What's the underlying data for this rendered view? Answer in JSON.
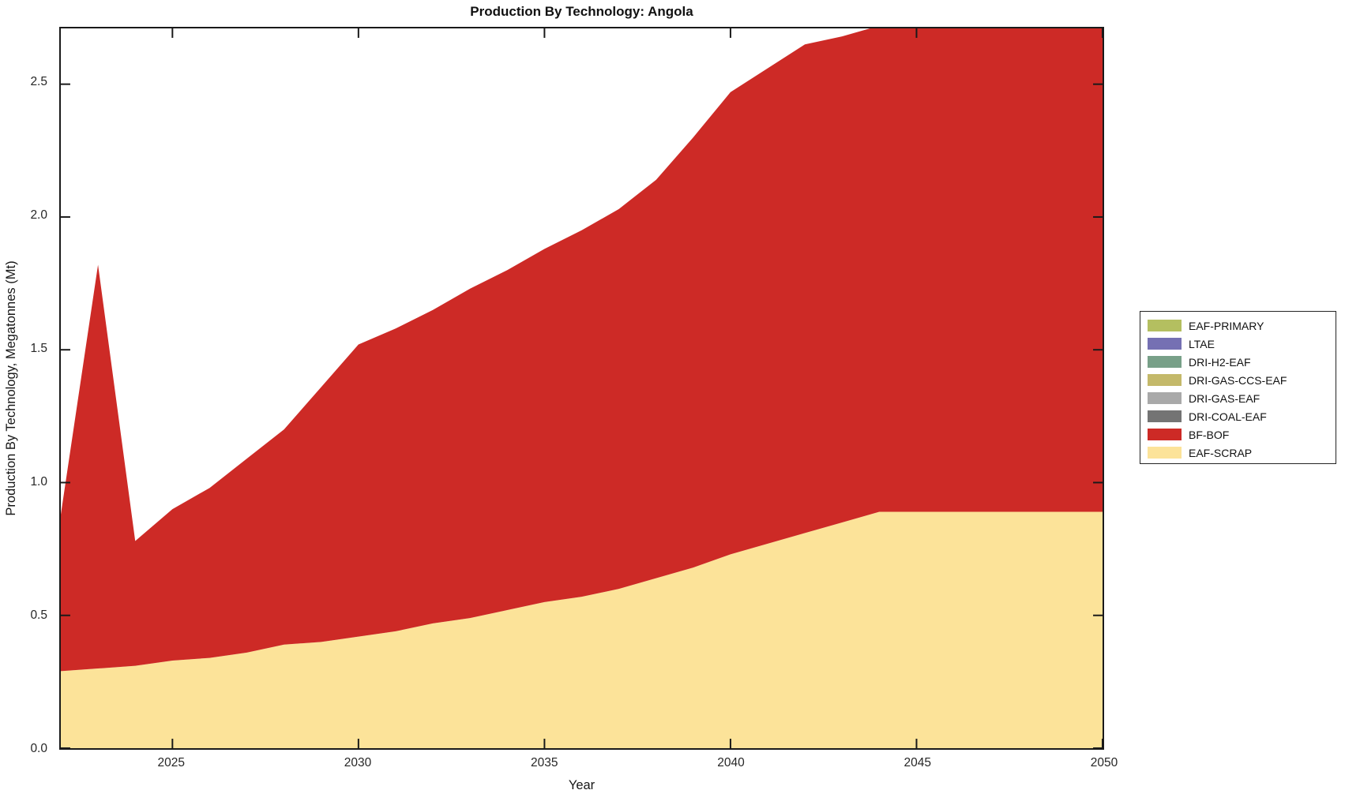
{
  "title": "Production By Technology: Angola",
  "chart_data": {
    "type": "area",
    "stacked": true,
    "title": "Production By Technology: Angola",
    "xlabel": "Year",
    "ylabel": "Production By Technology, Megatonnes (Mt)",
    "xlim": [
      2022,
      2050
    ],
    "ylim": [
      0,
      2.71
    ],
    "xticks": [
      2025,
      2030,
      2035,
      2040,
      2045,
      2050
    ],
    "yticks": [
      0.0,
      0.5,
      1.0,
      1.5,
      2.0,
      2.5
    ],
    "ytick_labels": [
      "0.0",
      "0.5",
      "1.0",
      "1.5",
      "2.0",
      "2.5"
    ],
    "grid": false,
    "legend_position": "outside-right",
    "x": [
      2022,
      2023,
      2024,
      2025,
      2026,
      2027,
      2028,
      2029,
      2030,
      2031,
      2032,
      2033,
      2034,
      2035,
      2036,
      2037,
      2038,
      2039,
      2040,
      2041,
      2042,
      2043,
      2044,
      2045,
      2046,
      2047,
      2048,
      2049,
      2050
    ],
    "series": [
      {
        "name": "EAF-SCRAP",
        "color": "#fce399",
        "values": [
          0.29,
          0.3,
          0.31,
          0.33,
          0.34,
          0.36,
          0.39,
          0.4,
          0.42,
          0.44,
          0.47,
          0.49,
          0.52,
          0.55,
          0.57,
          0.6,
          0.64,
          0.68,
          0.73,
          0.77,
          0.81,
          0.85,
          0.89,
          0.89,
          0.89,
          0.89,
          0.89,
          0.89,
          0.89
        ]
      },
      {
        "name": "BF-BOF",
        "color": "#cd2a26",
        "values": [
          0.59,
          1.52,
          0.47,
          0.57,
          0.64,
          0.73,
          0.81,
          0.96,
          1.1,
          1.14,
          1.18,
          1.24,
          1.28,
          1.33,
          1.38,
          1.43,
          1.5,
          1.62,
          1.74,
          1.79,
          1.84,
          1.83,
          1.83,
          1.83,
          1.83,
          1.83,
          1.83,
          1.83,
          1.83
        ]
      },
      {
        "name": "DRI-COAL-EAF",
        "color": "#747474",
        "values": [
          0,
          0,
          0,
          0,
          0,
          0,
          0,
          0,
          0,
          0,
          0,
          0,
          0,
          0,
          0,
          0,
          0,
          0,
          0,
          0,
          0,
          0,
          0,
          0,
          0,
          0,
          0,
          0,
          0
        ]
      },
      {
        "name": "DRI-GAS-EAF",
        "color": "#a9a9a9",
        "values": [
          0,
          0,
          0,
          0,
          0,
          0,
          0,
          0,
          0,
          0,
          0,
          0,
          0,
          0,
          0,
          0,
          0,
          0,
          0,
          0,
          0,
          0,
          0,
          0,
          0,
          0,
          0,
          0,
          0
        ]
      },
      {
        "name": "DRI-GAS-CCS-EAF",
        "color": "#c4b96a",
        "values": [
          0,
          0,
          0,
          0,
          0,
          0,
          0,
          0,
          0,
          0,
          0,
          0,
          0,
          0,
          0,
          0,
          0,
          0,
          0,
          0,
          0,
          0,
          0,
          0,
          0,
          0,
          0,
          0,
          0
        ]
      },
      {
        "name": "DRI-H2-EAF",
        "color": "#78a088",
        "values": [
          0,
          0,
          0,
          0,
          0,
          0,
          0,
          0,
          0,
          0,
          0,
          0,
          0,
          0,
          0,
          0,
          0,
          0,
          0,
          0,
          0,
          0,
          0,
          0,
          0,
          0,
          0,
          0,
          0
        ]
      },
      {
        "name": "LTAE",
        "color": "#7570b3",
        "values": [
          0,
          0,
          0,
          0,
          0,
          0,
          0,
          0,
          0,
          0,
          0,
          0,
          0,
          0,
          0,
          0,
          0,
          0,
          0,
          0,
          0,
          0,
          0,
          0,
          0,
          0,
          0,
          0,
          0
        ]
      },
      {
        "name": "EAF-PRIMARY",
        "color": "#b4bf60",
        "values": [
          0,
          0,
          0,
          0,
          0,
          0,
          0,
          0,
          0,
          0,
          0,
          0,
          0,
          0,
          0,
          0,
          0,
          0,
          0,
          0,
          0,
          0,
          0,
          0,
          0,
          0,
          0,
          0,
          0
        ]
      }
    ],
    "frame_color": "#1a1a1a"
  }
}
